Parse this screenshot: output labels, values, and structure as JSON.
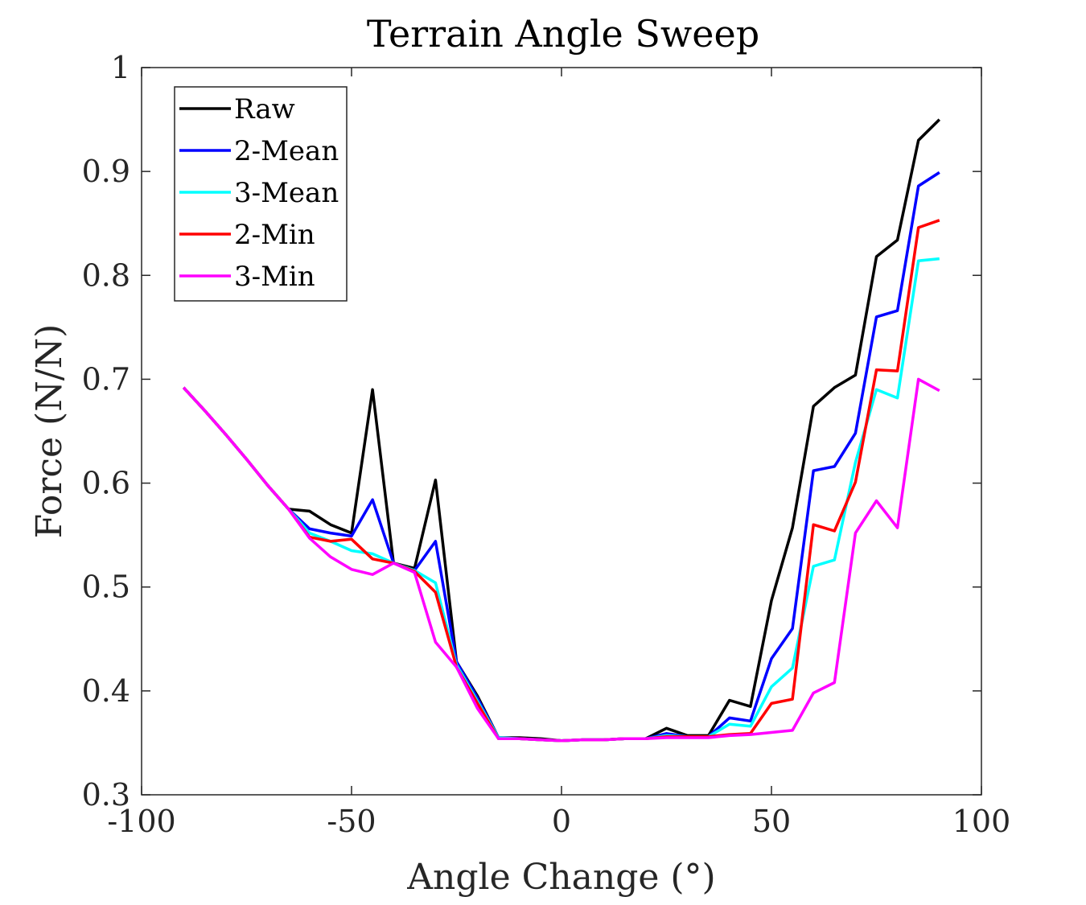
{
  "chart_data": {
    "type": "line",
    "title": "Terrain Angle Sweep",
    "xlabel": "Angle Change (°)",
    "ylabel": "Force (N/N)",
    "xlim": [
      -100,
      100
    ],
    "ylim": [
      0.3,
      1
    ],
    "xticks": [
      -100,
      -50,
      0,
      50,
      100
    ],
    "yticks": [
      0.3,
      0.4,
      0.5,
      0.6,
      0.7,
      0.8,
      0.9,
      1
    ],
    "xtick_labels": [
      "-100",
      "-50",
      "0",
      "50",
      "100"
    ],
    "ytick_labels": [
      "0.3",
      "0.4",
      "0.5",
      "0.6",
      "0.7",
      "0.8",
      "0.9",
      "1"
    ],
    "grid": false,
    "legend_position": "top-left",
    "x": [
      -90,
      -85,
      -80,
      -75,
      -70,
      -65,
      -60,
      -55,
      -50,
      -45,
      -40,
      -35,
      -30,
      -25,
      -20,
      -15,
      -10,
      -5,
      0,
      5,
      10,
      15,
      20,
      25,
      30,
      35,
      40,
      45,
      50,
      55,
      60,
      65,
      70,
      75,
      80,
      85,
      90
    ],
    "series": [
      {
        "name": "Raw",
        "color": "#000000",
        "values": [
          0.692,
          0.67,
          0.647,
          0.623,
          0.598,
          0.575,
          0.573,
          0.56,
          0.552,
          0.69,
          0.523,
          0.518,
          0.603,
          0.428,
          0.395,
          0.355,
          0.355,
          0.354,
          0.352,
          0.353,
          0.353,
          0.354,
          0.354,
          0.364,
          0.357,
          0.357,
          0.391,
          0.385,
          0.487,
          0.557,
          0.674,
          0.692,
          0.704,
          0.818,
          0.834,
          0.93,
          0.95
        ]
      },
      {
        "name": "2-Mean",
        "color": "#0000ff",
        "values": [
          0.692,
          0.67,
          0.647,
          0.623,
          0.598,
          0.575,
          0.556,
          0.552,
          0.549,
          0.584,
          0.523,
          0.516,
          0.544,
          0.428,
          0.393,
          0.355,
          0.354,
          0.353,
          0.352,
          0.353,
          0.353,
          0.354,
          0.354,
          0.359,
          0.356,
          0.356,
          0.374,
          0.371,
          0.431,
          0.46,
          0.612,
          0.616,
          0.648,
          0.76,
          0.766,
          0.886,
          0.899
        ]
      },
      {
        "name": "3-Mean",
        "color": "#00ffff",
        "values": [
          0.692,
          0.67,
          0.647,
          0.623,
          0.598,
          0.575,
          0.552,
          0.544,
          0.535,
          0.532,
          0.523,
          0.516,
          0.504,
          0.425,
          0.39,
          0.355,
          0.354,
          0.353,
          0.352,
          0.353,
          0.353,
          0.354,
          0.354,
          0.357,
          0.356,
          0.356,
          0.368,
          0.366,
          0.404,
          0.422,
          0.52,
          0.526,
          0.62,
          0.69,
          0.682,
          0.814,
          0.816
        ]
      },
      {
        "name": "2-Min",
        "color": "#ff0000",
        "values": [
          0.692,
          0.67,
          0.647,
          0.623,
          0.598,
          0.575,
          0.548,
          0.544,
          0.546,
          0.527,
          0.523,
          0.515,
          0.495,
          0.423,
          0.388,
          0.354,
          0.354,
          0.353,
          0.352,
          0.353,
          0.353,
          0.354,
          0.354,
          0.356,
          0.356,
          0.356,
          0.358,
          0.359,
          0.388,
          0.392,
          0.56,
          0.554,
          0.601,
          0.709,
          0.708,
          0.846,
          0.853
        ]
      },
      {
        "name": "3-Min",
        "color": "#ff00ff",
        "values": [
          0.692,
          0.67,
          0.647,
          0.623,
          0.598,
          0.575,
          0.547,
          0.529,
          0.517,
          0.512,
          0.523,
          0.514,
          0.447,
          0.423,
          0.383,
          0.354,
          0.354,
          0.353,
          0.352,
          0.353,
          0.353,
          0.354,
          0.354,
          0.355,
          0.355,
          0.355,
          0.357,
          0.358,
          0.36,
          0.362,
          0.398,
          0.408,
          0.552,
          0.583,
          0.557,
          0.7,
          0.689
        ]
      }
    ]
  }
}
